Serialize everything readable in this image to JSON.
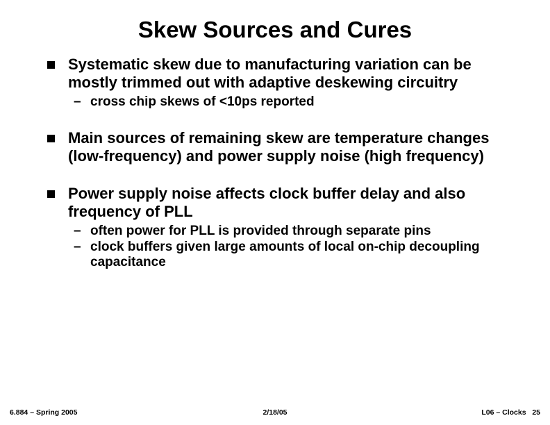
{
  "title": "Skew Sources and Cures",
  "title_fontsize": 33,
  "body_fontsize": 22,
  "sub_fontsize": 19,
  "footer_fontsize": 10.5,
  "bullets": [
    {
      "text": "Systematic skew due to manufacturing variation can be mostly trimmed out with adaptive deskewing circuitry",
      "subs": [
        "cross chip skews of <10ps reported"
      ]
    },
    {
      "text": "Main sources of remaining skew are temperature changes (low-frequency) and power supply noise (high frequency)",
      "subs": []
    },
    {
      "text": "Power supply noise affects clock buffer delay and also frequency of PLL",
      "subs": [
        "often power for PLL is provided through separate pins",
        "clock buffers given large amounts of local on-chip decoupling capacitance"
      ]
    }
  ],
  "footer": {
    "left": "6.884 – Spring 2005",
    "center": "2/18/05",
    "right_label": "L06 – Clocks",
    "right_page": "25"
  },
  "colors": {
    "background": "#ffffff",
    "text": "#000000",
    "bullet": "#000000"
  }
}
